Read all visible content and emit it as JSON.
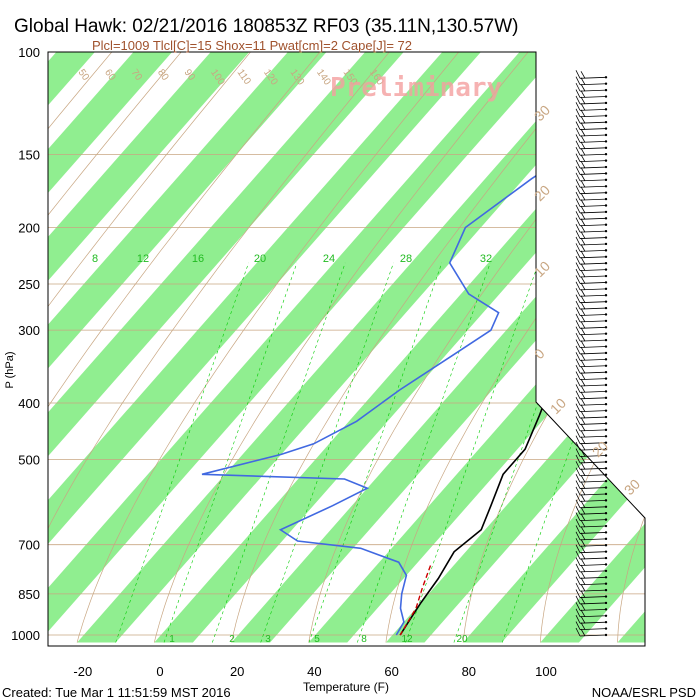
{
  "header": {
    "title": "Global Hawk: 02/21/2016 180853Z RF03 (35.11N,130.57W)",
    "indices": "Plcl=1009 Tlcl[C]=15 Shox=11 Pwat[cm]=2 Cape[J]= 72"
  },
  "watermark": "Preliminary",
  "footer": {
    "created": "Created: Tue Mar  1 11:51:59 MST 2016",
    "credit": "NOAA/ESRL PSD"
  },
  "colors": {
    "band": "#90ee90",
    "temperature": "#000000",
    "dewpoint": "#4169e1",
    "parcel": "#cc0000",
    "adiabat": "#c8a682",
    "mixing": "#00cc00"
  },
  "chart_data": {
    "type": "line",
    "plot": "skew-T log-p sounding",
    "xlabel": "Temperature (F)",
    "ylabel": "P (hPa)",
    "xlim": [
      -29,
      124
    ],
    "ylim": [
      1030,
      100
    ],
    "y_scale": "log",
    "x_ticks": [
      "-20",
      "0",
      "20",
      "40",
      "60",
      "80",
      "100"
    ],
    "y_ticks": [
      "100",
      "150",
      "200",
      "250",
      "300",
      "400",
      "500",
      "700",
      "850",
      "1000"
    ],
    "mixing_ratio_labels_top": [
      "8",
      "12",
      "16",
      "20",
      "24",
      "28",
      "32"
    ],
    "mixing_ratio_labels_bottom": [
      "1",
      "2",
      "3",
      "5",
      "8",
      "12",
      "20"
    ],
    "theta_labels_top": [
      "50",
      "60",
      "70",
      "80",
      "90",
      "100",
      "110",
      "120",
      "130",
      "140",
      "150",
      "160"
    ],
    "theta_labels_right": [
      "30",
      "20",
      "10",
      "0",
      "10",
      "20",
      "30"
    ],
    "temperature": {
      "name": "Temperature",
      "color": "#000000",
      "points": [
        [
          50,
          113
        ],
        [
          43,
          135
        ],
        [
          41,
          150
        ],
        [
          42,
          165
        ],
        [
          43,
          190
        ],
        [
          41,
          220
        ],
        [
          37,
          250
        ],
        [
          38,
          300
        ],
        [
          43,
          360
        ],
        [
          48,
          420
        ],
        [
          52,
          480
        ],
        [
          52,
          530
        ],
        [
          56,
          600
        ],
        [
          59,
          660
        ],
        [
          57,
          720
        ],
        [
          59,
          800
        ],
        [
          60,
          880
        ],
        [
          61,
          940
        ],
        [
          62,
          1000
        ]
      ]
    },
    "dewpoint": {
      "name": "Dewpoint",
      "color": "#4169e1",
      "points": [
        [
          2,
          130
        ],
        [
          -8,
          165
        ],
        [
          -14,
          200
        ],
        [
          -10,
          230
        ],
        [
          2,
          260
        ],
        [
          14,
          280
        ],
        [
          16,
          300
        ],
        [
          12,
          330
        ],
        [
          6,
          380
        ],
        [
          2,
          430
        ],
        [
          -4,
          470
        ],
        [
          -10,
          490
        ],
        [
          -26,
          530
        ],
        [
          12,
          540
        ],
        [
          20,
          560
        ],
        [
          15,
          600
        ],
        [
          7,
          660
        ],
        [
          14,
          690
        ],
        [
          32,
          710
        ],
        [
          45,
          750
        ],
        [
          50,
          790
        ],
        [
          53,
          850
        ],
        [
          56,
          900
        ],
        [
          60,
          950
        ],
        [
          61,
          1000
        ]
      ]
    },
    "parcel": {
      "name": "Parcel",
      "color": "#cc0000",
      "points": [
        [
          54,
          760
        ],
        [
          57,
          830
        ],
        [
          60,
          900
        ],
        [
          62,
          1000
        ]
      ]
    },
    "wind_barbs": true
  }
}
